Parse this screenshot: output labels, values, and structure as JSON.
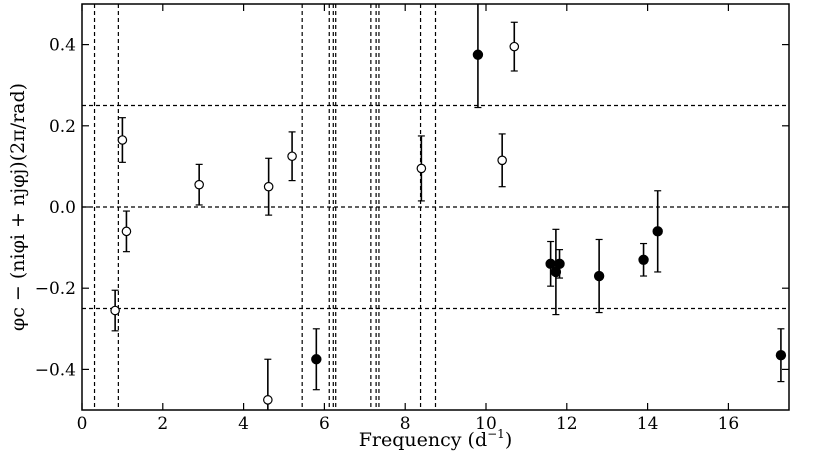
{
  "chart_data": {
    "type": "scatter",
    "xlabel_main": "Frequency (d",
    "xlabel_sup": "−1",
    "xlabel_end": ")",
    "ylabel": "φc − (niφi + njφj)(2π/rad)",
    "xlim": [
      0,
      17.5
    ],
    "ylim": [
      -0.5,
      0.5
    ],
    "xticks": [
      0,
      2,
      4,
      6,
      8,
      10,
      12,
      14,
      16
    ],
    "yticks": [
      -0.4,
      -0.2,
      0.0,
      0.2,
      0.4
    ],
    "xtick_labels": [
      "0",
      "2",
      "4",
      "6",
      "8",
      "10",
      "12",
      "14",
      "16"
    ],
    "ytick_labels": [
      "−0.4",
      "−0.2",
      "0.0",
      "0.2",
      "0.4"
    ],
    "hlines": [
      -0.25,
      0.0,
      0.25
    ],
    "vlines": [
      0.31,
      0.9,
      5.45,
      6.12,
      6.22,
      6.28,
      7.15,
      7.28,
      7.35,
      8.38,
      8.75
    ],
    "grid": false,
    "series": [
      {
        "marker": "open",
        "points": [
          {
            "x": 0.82,
            "y": -0.255,
            "err": 0.05
          },
          {
            "x": 1.0,
            "y": 0.165,
            "err": 0.055
          },
          {
            "x": 1.1,
            "y": -0.06,
            "err": 0.05
          },
          {
            "x": 2.9,
            "y": 0.055,
            "err": 0.05
          },
          {
            "x": 4.6,
            "y": -0.475,
            "err": 0.1
          },
          {
            "x": 4.62,
            "y": 0.05,
            "err": 0.07
          },
          {
            "x": 5.2,
            "y": 0.125,
            "err": 0.06
          },
          {
            "x": 8.4,
            "y": 0.095,
            "err": 0.08
          },
          {
            "x": 10.4,
            "y": 0.115,
            "err": 0.065
          },
          {
            "x": 10.7,
            "y": 0.395,
            "err": 0.06
          }
        ]
      },
      {
        "marker": "filled",
        "points": [
          {
            "x": 5.8,
            "y": -0.375,
            "err": 0.075
          },
          {
            "x": 9.8,
            "y": 0.375,
            "err": 0.13
          },
          {
            "x": 11.6,
            "y": -0.14,
            "err": 0.055
          },
          {
            "x": 11.73,
            "y": -0.16,
            "err": 0.105
          },
          {
            "x": 11.82,
            "y": -0.14,
            "err": 0.035
          },
          {
            "x": 12.8,
            "y": -0.17,
            "err": 0.09
          },
          {
            "x": 13.9,
            "y": -0.13,
            "err": 0.04
          },
          {
            "x": 14.25,
            "y": -0.06,
            "err": 0.1
          },
          {
            "x": 17.3,
            "y": -0.365,
            "err": 0.065
          }
        ]
      }
    ]
  }
}
